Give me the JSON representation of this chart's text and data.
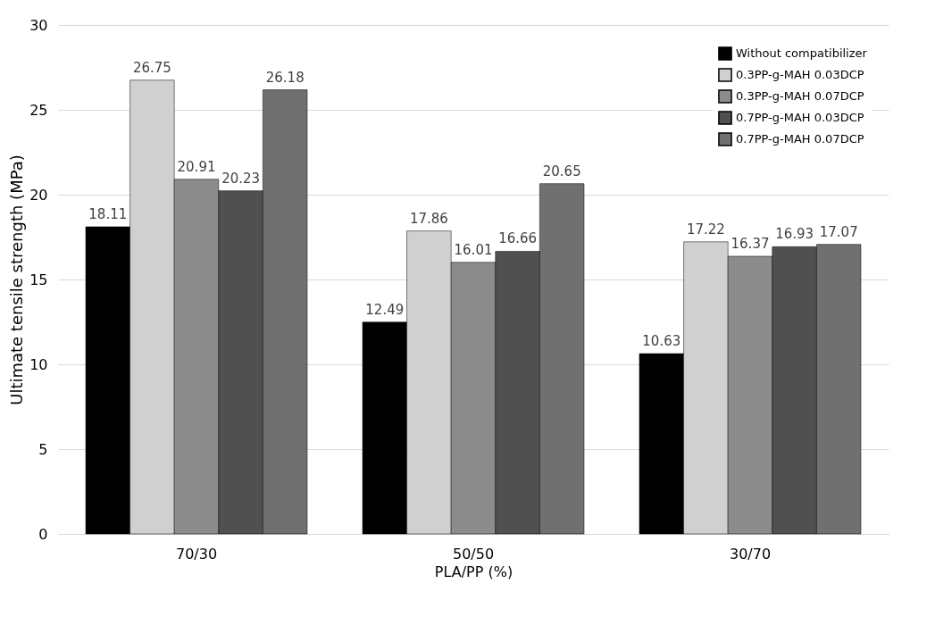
{
  "chart_data": {
    "type": "bar",
    "xlabel": "PLA/PP (%)",
    "ylabel": "Ultimate tensile strength (MPa)",
    "categories": [
      "70/30",
      "50/50",
      "30/70"
    ],
    "series": [
      {
        "name": "Without compatibilizer",
        "color": "#000000",
        "values": [
          18.11,
          12.49,
          10.63
        ]
      },
      {
        "name": "0.3PP-g-MAH 0.03DCP",
        "color": "#d0d0d0",
        "values": [
          26.75,
          17.86,
          17.22
        ]
      },
      {
        "name": "0.3PP-g-MAH 0.07DCP",
        "color": "#8c8c8c",
        "values": [
          20.91,
          16.01,
          16.37
        ]
      },
      {
        "name": "0.7PP-g-MAH 0.03DCP",
        "color": "#505050",
        "values": [
          20.23,
          16.66,
          16.93
        ]
      },
      {
        "name": "0.7PP-g-MAH 0.07DCP",
        "color": "#707070",
        "values": [
          26.18,
          20.65,
          17.07
        ]
      }
    ],
    "ylim": [
      0,
      30
    ],
    "yticks": [
      0,
      5,
      10,
      15,
      20,
      25,
      30
    ],
    "grid": "y",
    "legend": "top right",
    "data_labels": true
  }
}
